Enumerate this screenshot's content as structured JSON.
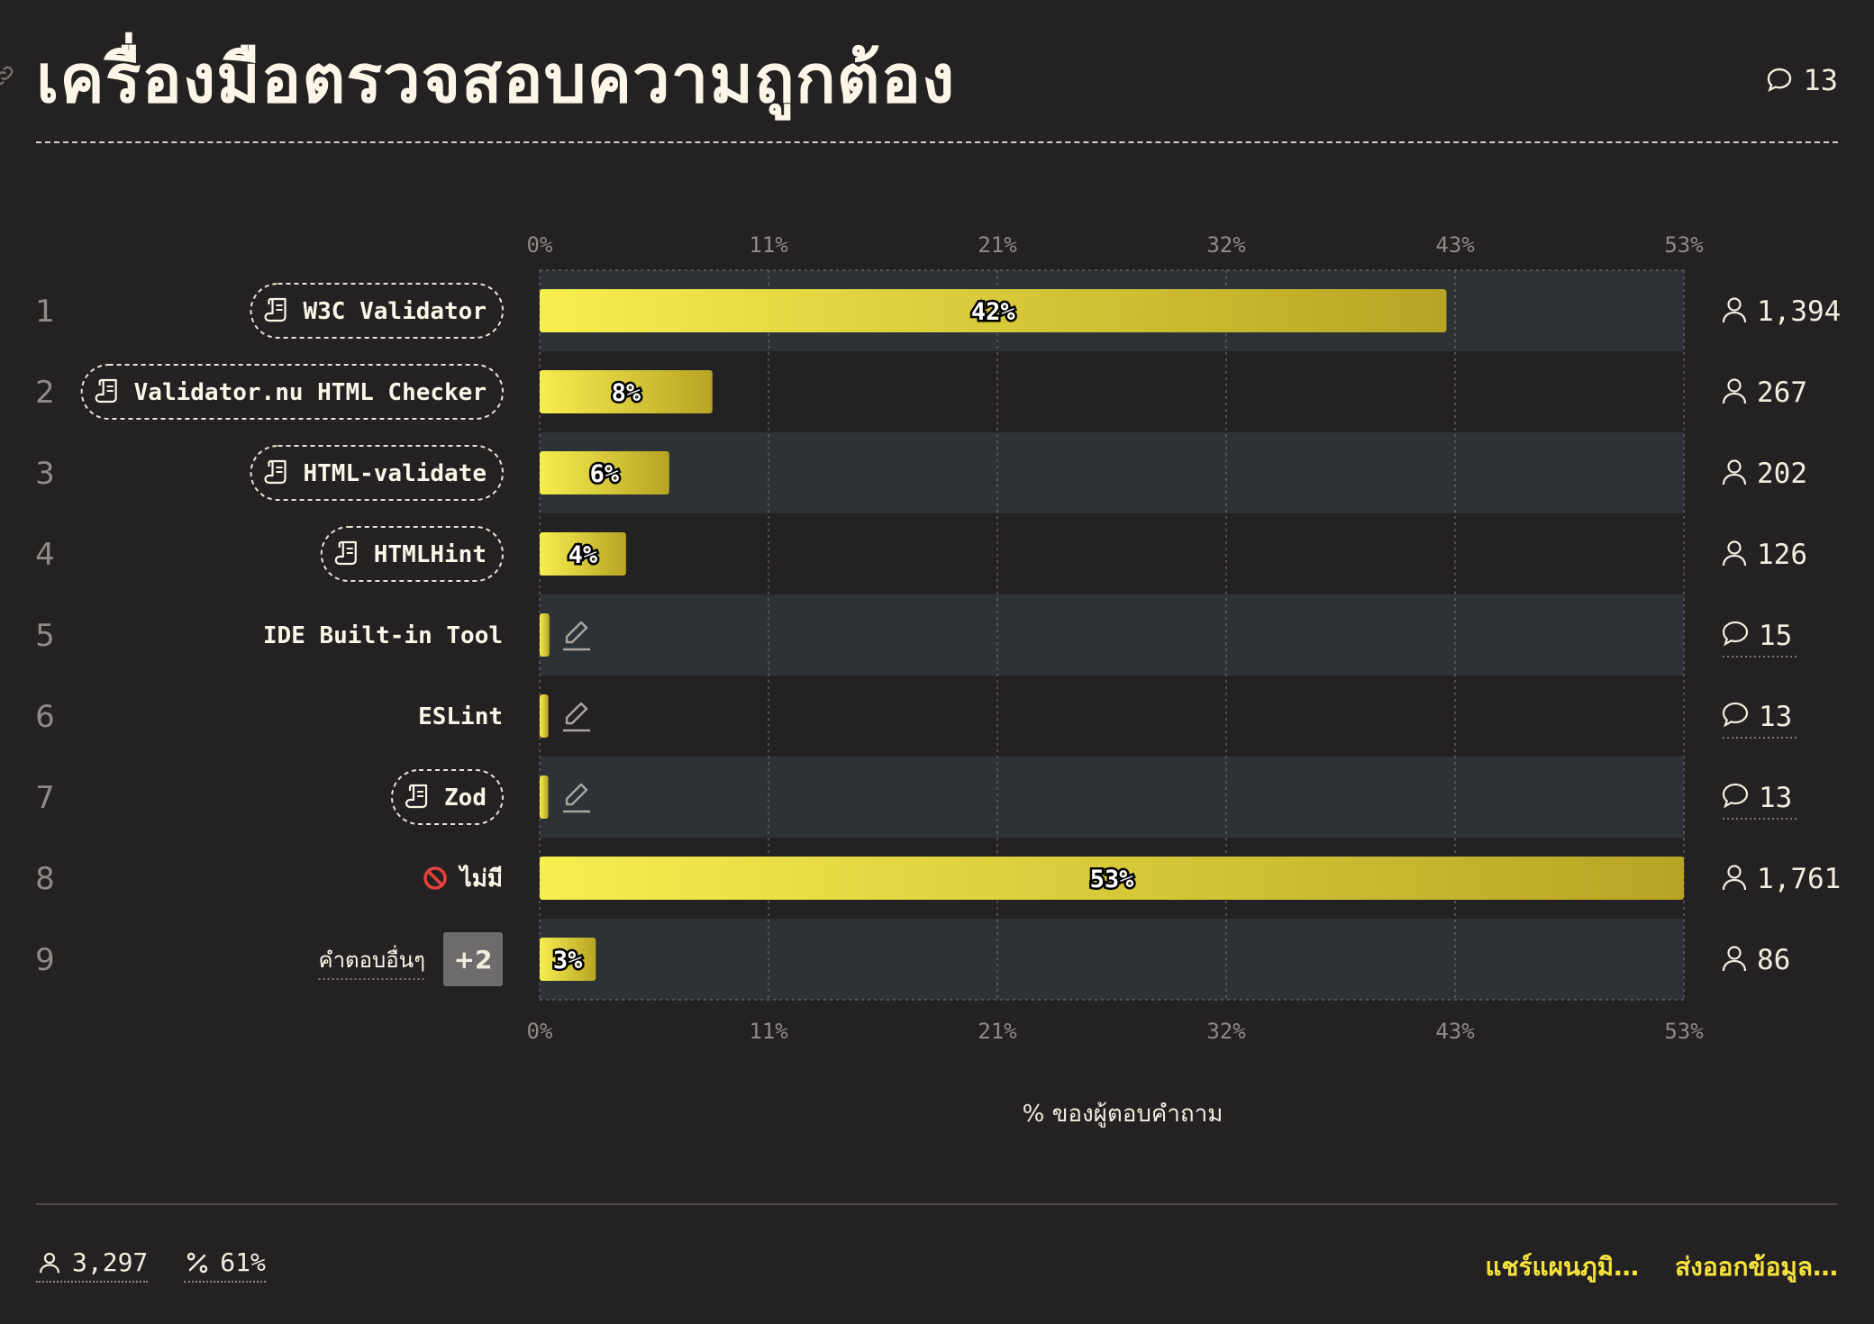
{
  "header": {
    "title": "เครื่องมือตรวจสอบความถูกต้อง",
    "comment_count": "13"
  },
  "chart_data": {
    "type": "bar",
    "orientation": "horizontal",
    "title": "เครื่องมือตรวจสอบความถูกต้อง",
    "xlabel": "% ของผู้ตอบคำถาม",
    "ylabel": "",
    "xlim": [
      0,
      53
    ],
    "x_ticks": [
      "0%",
      "11%",
      "21%",
      "32%",
      "43%",
      "53%"
    ],
    "grid": true,
    "bar_color_start": "#f7ee4f",
    "bar_color_end": "#b8a424",
    "categories": [
      {
        "rank": "1",
        "name": "W3C Validator",
        "percent": 42,
        "label": "42%",
        "count": "1,394",
        "count_type": "respondents",
        "badge": true
      },
      {
        "rank": "2",
        "name": "Validator.nu HTML Checker",
        "percent": 8,
        "label": "8%",
        "count": "267",
        "count_type": "respondents",
        "badge": true
      },
      {
        "rank": "3",
        "name": "HTML-validate",
        "percent": 6,
        "label": "6%",
        "count": "202",
        "count_type": "respondents",
        "badge": true
      },
      {
        "rank": "4",
        "name": "HTMLHint",
        "percent": 4,
        "label": "4%",
        "count": "126",
        "count_type": "respondents",
        "badge": true
      },
      {
        "rank": "5",
        "name": "IDE Built-in Tool",
        "percent": 0.45,
        "label": "",
        "count": "15",
        "count_type": "comments",
        "badge": false,
        "edit_icon": true
      },
      {
        "rank": "6",
        "name": "ESLint",
        "percent": 0.4,
        "label": "",
        "count": "13",
        "count_type": "comments",
        "badge": false,
        "edit_icon": true
      },
      {
        "rank": "7",
        "name": "Zod",
        "percent": 0.4,
        "label": "",
        "count": "13",
        "count_type": "comments",
        "badge": true,
        "edit_icon": true
      },
      {
        "rank": "8",
        "name": "ไม่มี",
        "percent": 53,
        "label": "53%",
        "count": "1,761",
        "count_type": "respondents",
        "badge": false,
        "no_icon": true
      },
      {
        "rank": "9",
        "name": "คำตอบอื่นๆ",
        "percent": 2.6,
        "label": "3%",
        "count": "86",
        "count_type": "respondents",
        "badge": false,
        "extra": "+2"
      }
    ]
  },
  "footer": {
    "respondents": "3,297",
    "percent": "61%",
    "share_label": "แชร์แผนภูมิ…",
    "export_label": "ส่งออกข้อมูล…"
  }
}
